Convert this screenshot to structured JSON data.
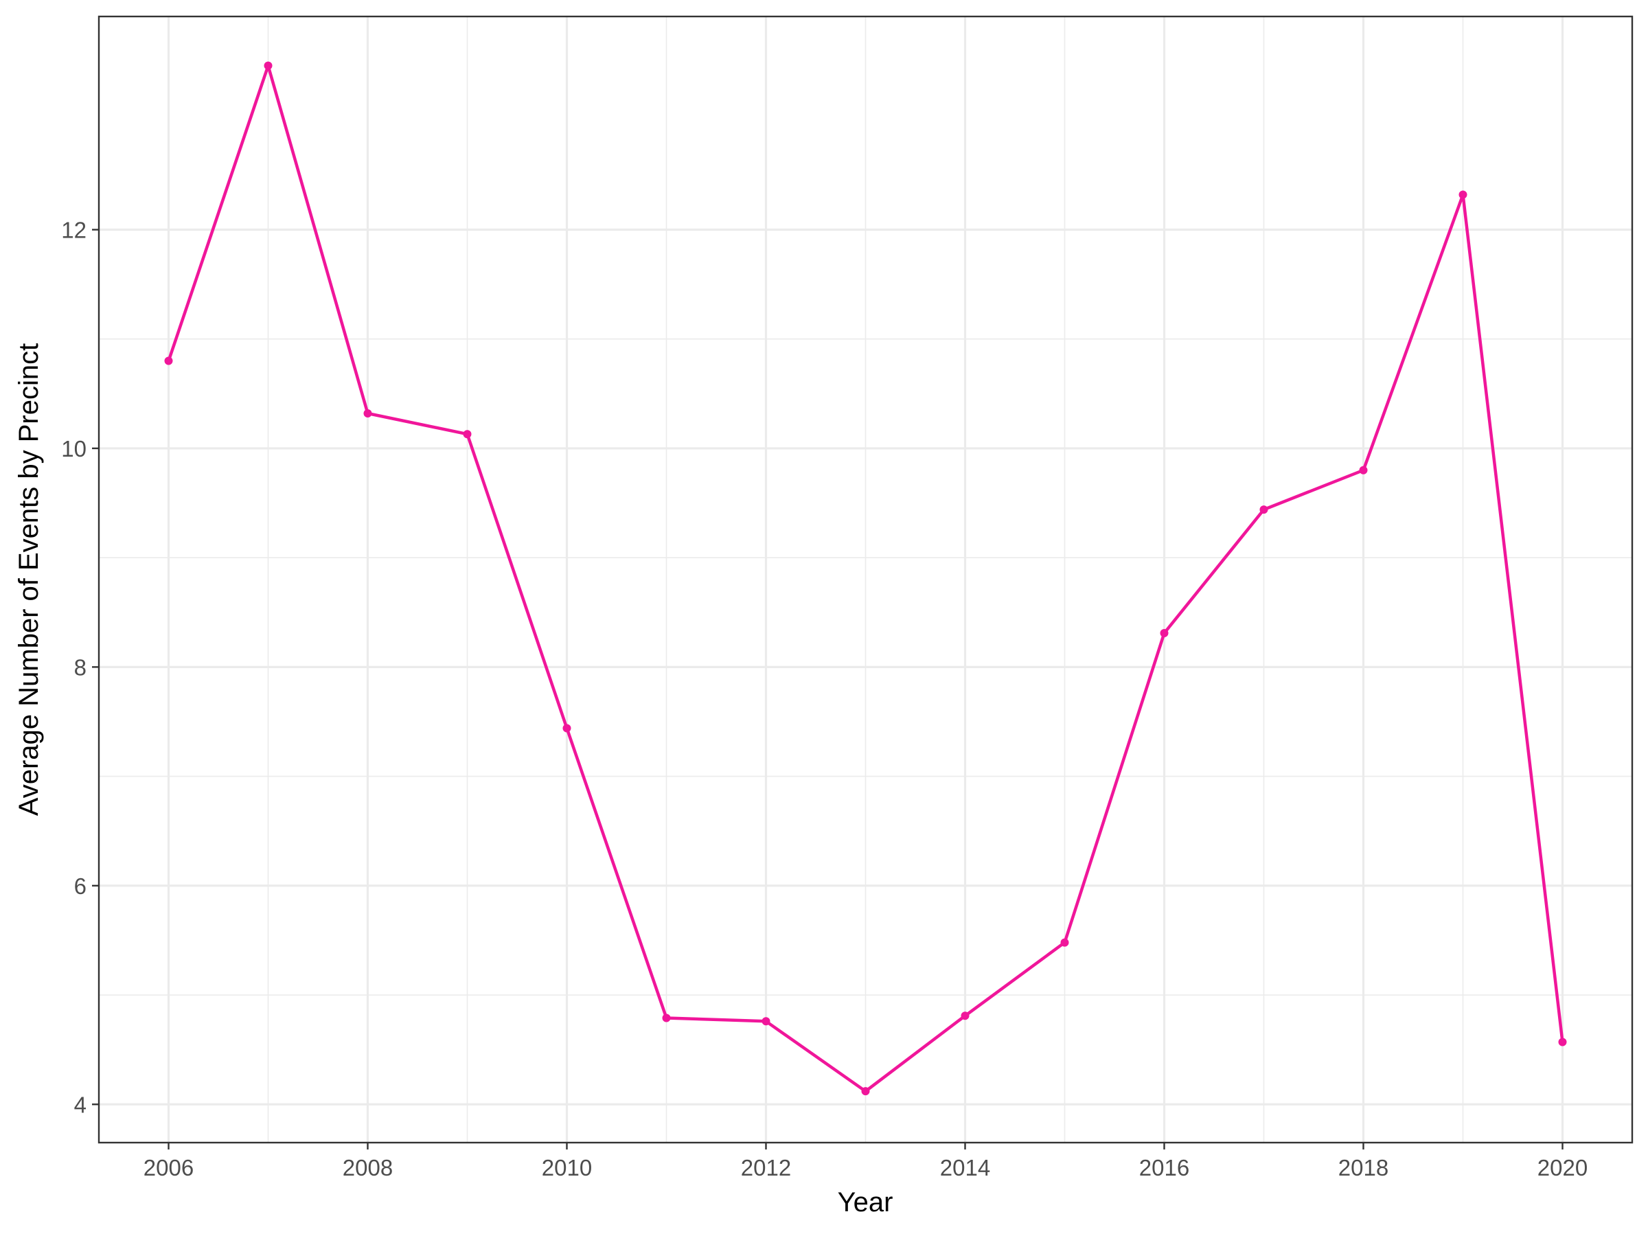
{
  "chart_data": {
    "type": "line",
    "title": "",
    "xlabel": "Year",
    "ylabel": "Average Number of Events by Precinct",
    "x": [
      2006,
      2007,
      2008,
      2009,
      2010,
      2011,
      2012,
      2013,
      2014,
      2015,
      2016,
      2017,
      2018,
      2019,
      2020
    ],
    "series": [
      {
        "values": [
          10.8,
          13.5,
          10.32,
          10.13,
          7.44,
          4.79,
          4.76,
          4.12,
          4.81,
          5.48,
          8.31,
          9.44,
          9.8,
          12.32,
          4.57
        ]
      }
    ],
    "xlim": [
      2005.3,
      2020.7
    ],
    "ylim": [
      3.65,
      13.95
    ],
    "xticks": [
      "2006",
      "2008",
      "2010",
      "2012",
      "2014",
      "2016",
      "2018",
      "2020"
    ],
    "yticks": [
      "4",
      "6",
      "8",
      "10",
      "12"
    ],
    "grid": true,
    "legend": "none",
    "colors": {
      "line": "#f0169a",
      "grid": "#ebebeb",
      "panel_border": "#333333",
      "text": "#4d4d4d"
    }
  }
}
